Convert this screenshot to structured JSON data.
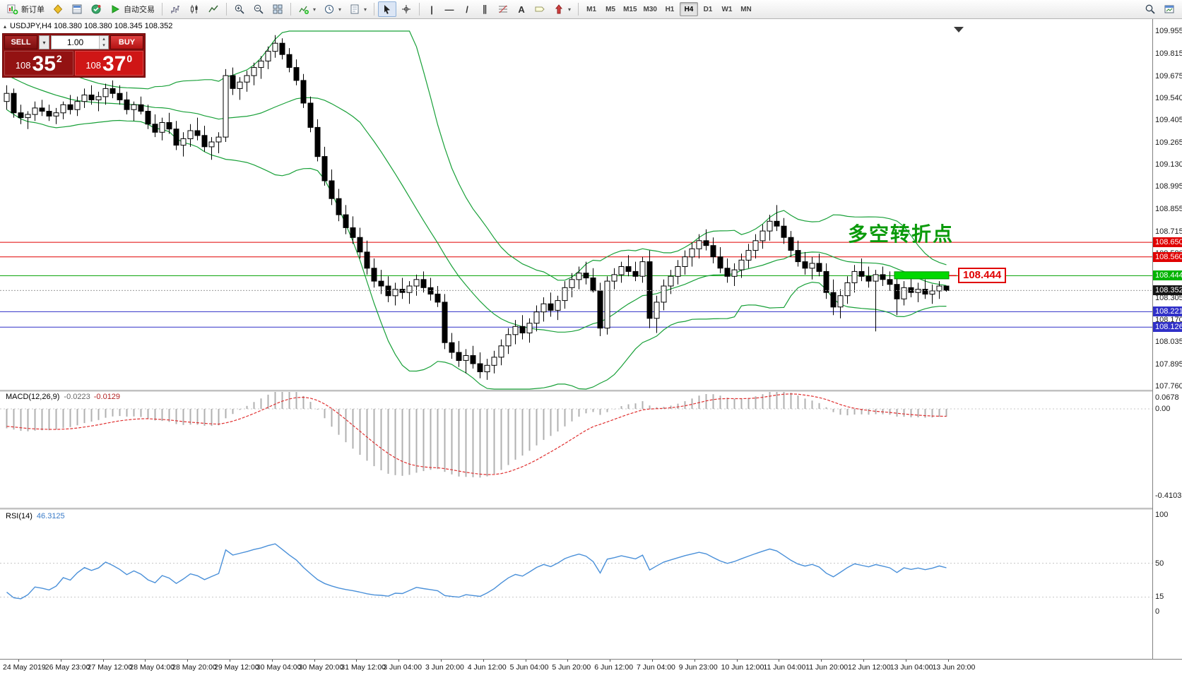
{
  "toolbar": {
    "new_order": "新订单",
    "autotrading": "自动交易",
    "timeframes": [
      "M1",
      "M5",
      "M15",
      "M30",
      "H1",
      "H4",
      "D1",
      "W1",
      "MN"
    ],
    "active_timeframe": "H4",
    "glyphs": {
      "dropdown": "▾",
      "spin_up": "▴",
      "spin_down": "▾",
      "vline": "|",
      "hline": "—",
      "trendline": "/",
      "channel": "∥",
      "crosshair": "+",
      "text_tool": "A",
      "symbol_marker": "▴"
    }
  },
  "chart": {
    "symbol_line": "USDJPY,H4 108.380 108.380 108.345 108.352",
    "annotation": "多空转折点",
    "callout": "108.444",
    "trade_panel": {
      "sell_label": "SELL",
      "buy_label": "BUY",
      "volume": "1.00",
      "sell_price": {
        "main": "108",
        "big": "35",
        "sup": "2"
      },
      "buy_price": {
        "main": "108",
        "big": "37",
        "sup": "0"
      }
    },
    "price_labels": [
      "109.955",
      "109.815",
      "109.675",
      "109.540",
      "109.405",
      "109.265",
      "109.130",
      "108.995",
      "108.855",
      "108.715",
      "108.580",
      "108.440",
      "108.305",
      "108.170",
      "108.035",
      "107.895",
      "107.760"
    ],
    "hlines": [
      {
        "label": "108.650",
        "line_color": "#e00000",
        "badge_color": "#e00000",
        "style": "solid"
      },
      {
        "label": "108.560",
        "line_color": "#e00000",
        "badge_color": "#e00000",
        "style": "solid"
      },
      {
        "label": "108.444",
        "line_color": "#00a000",
        "badge_color": "#00b400",
        "style": "solid"
      },
      {
        "label": "108.352",
        "line_color": "#a8a8a8",
        "badge_color": "#151515",
        "style": "dotted"
      },
      {
        "label": "108.221",
        "line_color": "#3030c8",
        "badge_color": "#3030c8",
        "style": "solid"
      },
      {
        "label": "108.126",
        "line_color": "#3030c8",
        "badge_color": "#3030c8",
        "style": "solid"
      }
    ],
    "highlight": {
      "price_top": 108.468,
      "price_bottom": 108.424,
      "start_index": 126,
      "end_index": 133,
      "color": "#00d800",
      "border": "#009000"
    }
  },
  "macd": {
    "name": "MACD(12,26,9)",
    "value1": "-0.0223",
    "value2": "-0.0129",
    "axis": [
      {
        "v": 0.0678,
        "t": "0.0678"
      },
      {
        "v": 0,
        "t": "0.00"
      },
      {
        "v": -0.4103,
        "t": "-0.4103"
      }
    ]
  },
  "rsi": {
    "name": "RSI(14)",
    "value": "46.3125",
    "axis": [
      {
        "v": 100,
        "t": "100"
      },
      {
        "v": 50,
        "t": "50"
      },
      {
        "v": 15,
        "t": "15"
      },
      {
        "v": 0,
        "t": "0"
      }
    ],
    "levels": [
      50,
      15
    ]
  },
  "time_labels": [
    "24 May 2019",
    "26 May 23:00",
    "27 May 12:00",
    "28 May 04:00",
    "28 May 20:00",
    "29 May 12:00",
    "30 May 04:00",
    "30 May 20:00",
    "31 May 12:00",
    "3 Jun 04:00",
    "3 Jun 20:00",
    "4 Jun 12:00",
    "5 Jun 04:00",
    "5 Jun 20:00",
    "6 Jun 12:00",
    "7 Jun 04:00",
    "9 Jun 23:00",
    "10 Jun 12:00",
    "11 Jun 04:00",
    "11 Jun 20:00",
    "12 Jun 12:00",
    "13 Jun 04:00",
    "13 Jun 20:00"
  ],
  "colors": {
    "bull": "#ffffff",
    "bear": "#000000",
    "wick": "#000000",
    "bb": "#18a038",
    "macd_hist": "#b0b0b0",
    "macd_signal": "#e03030",
    "rsi_line": "#4a90d9",
    "grid_dash": "#c8c8c8"
  },
  "chart_data": {
    "type": "candlestick",
    "symbol": "USDJPY",
    "timeframe": "H4",
    "price_axis_top": 109.955,
    "price_axis_bottom": 107.76,
    "macd_axis": [
      0.0678,
      0,
      -0.4103
    ],
    "rsi_axis": [
      100,
      50,
      15,
      0
    ],
    "candles": [
      [
        109.52,
        109.62,
        109.47,
        109.57
      ],
      [
        109.57,
        109.6,
        109.42,
        109.45
      ],
      [
        109.45,
        109.5,
        109.38,
        109.42
      ],
      [
        109.42,
        109.46,
        109.35,
        109.44
      ],
      [
        109.44,
        109.52,
        109.4,
        109.48
      ],
      [
        109.48,
        109.53,
        109.43,
        109.46
      ],
      [
        109.46,
        109.5,
        109.4,
        109.43
      ],
      [
        109.43,
        109.48,
        109.38,
        109.45
      ],
      [
        109.45,
        109.52,
        109.41,
        109.5
      ],
      [
        109.5,
        109.56,
        109.44,
        109.47
      ],
      [
        109.47,
        109.55,
        109.43,
        109.52
      ],
      [
        109.52,
        109.6,
        109.48,
        109.56
      ],
      [
        109.56,
        109.62,
        109.5,
        109.53
      ],
      [
        109.53,
        109.58,
        109.46,
        109.55
      ],
      [
        109.55,
        109.63,
        109.5,
        109.6
      ],
      [
        109.6,
        109.65,
        109.54,
        109.57
      ],
      [
        109.57,
        109.62,
        109.5,
        109.53
      ],
      [
        109.53,
        109.58,
        109.44,
        109.47
      ],
      [
        109.47,
        109.52,
        109.4,
        109.5
      ],
      [
        109.5,
        109.55,
        109.44,
        109.46
      ],
      [
        109.46,
        109.5,
        109.35,
        109.38
      ],
      [
        109.38,
        109.44,
        109.3,
        109.33
      ],
      [
        109.33,
        109.42,
        109.28,
        109.39
      ],
      [
        109.39,
        109.45,
        109.32,
        109.35
      ],
      [
        109.35,
        109.4,
        109.22,
        109.25
      ],
      [
        109.25,
        109.33,
        109.18,
        109.29
      ],
      [
        109.29,
        109.38,
        109.24,
        109.34
      ],
      [
        109.34,
        109.42,
        109.28,
        109.31
      ],
      [
        109.31,
        109.37,
        109.21,
        109.24
      ],
      [
        109.24,
        109.3,
        109.16,
        109.27
      ],
      [
        109.27,
        109.33,
        109.2,
        109.3
      ],
      [
        109.3,
        109.72,
        109.27,
        109.68
      ],
      [
        109.68,
        109.73,
        109.56,
        109.6
      ],
      [
        109.6,
        109.67,
        109.53,
        109.64
      ],
      [
        109.64,
        109.71,
        109.58,
        109.68
      ],
      [
        109.68,
        109.76,
        109.62,
        109.73
      ],
      [
        109.73,
        109.8,
        109.66,
        109.77
      ],
      [
        109.77,
        109.86,
        109.72,
        109.83
      ],
      [
        109.83,
        109.93,
        109.79,
        109.88
      ],
      [
        109.88,
        109.91,
        109.78,
        109.81
      ],
      [
        109.81,
        109.85,
        109.7,
        109.73
      ],
      [
        109.73,
        109.78,
        109.62,
        109.65
      ],
      [
        109.65,
        109.69,
        109.48,
        109.51
      ],
      [
        109.51,
        109.55,
        109.33,
        109.36
      ],
      [
        109.36,
        109.41,
        109.15,
        109.18
      ],
      [
        109.18,
        109.24,
        109.0,
        109.03
      ],
      [
        109.03,
        109.1,
        108.88,
        108.92
      ],
      [
        108.92,
        108.98,
        108.78,
        108.82
      ],
      [
        108.82,
        108.88,
        108.7,
        108.74
      ],
      [
        108.74,
        108.81,
        108.64,
        108.68
      ],
      [
        108.68,
        108.74,
        108.55,
        108.59
      ],
      [
        108.59,
        108.66,
        108.45,
        108.49
      ],
      [
        108.49,
        108.55,
        108.37,
        108.41
      ],
      [
        108.41,
        108.48,
        108.33,
        108.38
      ],
      [
        108.38,
        108.44,
        108.28,
        108.32
      ],
      [
        108.32,
        108.4,
        108.26,
        108.36
      ],
      [
        108.36,
        108.43,
        108.3,
        108.34
      ],
      [
        108.34,
        108.41,
        108.27,
        108.38
      ],
      [
        108.38,
        108.45,
        108.32,
        108.42
      ],
      [
        108.42,
        108.47,
        108.34,
        108.37
      ],
      [
        108.37,
        108.43,
        108.29,
        108.33
      ],
      [
        108.33,
        108.38,
        108.25,
        108.28
      ],
      [
        108.28,
        108.33,
        107.99,
        108.03
      ],
      [
        108.03,
        108.09,
        107.93,
        107.97
      ],
      [
        107.97,
        108.04,
        107.88,
        107.92
      ],
      [
        107.92,
        107.99,
        107.84,
        107.95
      ],
      [
        107.95,
        108.01,
        107.87,
        107.9
      ],
      [
        107.9,
        107.97,
        107.81,
        107.85
      ],
      [
        107.85,
        107.93,
        107.8,
        107.89
      ],
      [
        107.89,
        107.98,
        107.84,
        107.94
      ],
      [
        107.94,
        108.05,
        107.89,
        108.01
      ],
      [
        108.01,
        108.12,
        107.96,
        108.08
      ],
      [
        108.08,
        108.17,
        108.02,
        108.13
      ],
      [
        108.13,
        108.2,
        108.05,
        108.09
      ],
      [
        108.09,
        108.18,
        108.03,
        108.15
      ],
      [
        108.15,
        108.26,
        108.1,
        108.22
      ],
      [
        108.22,
        108.31,
        108.16,
        108.27
      ],
      [
        108.27,
        108.34,
        108.19,
        108.23
      ],
      [
        108.23,
        108.32,
        108.17,
        108.29
      ],
      [
        108.29,
        108.41,
        108.24,
        108.37
      ],
      [
        108.37,
        108.46,
        108.31,
        108.42
      ],
      [
        108.42,
        108.5,
        108.36,
        108.46
      ],
      [
        108.46,
        108.53,
        108.39,
        108.43
      ],
      [
        108.43,
        108.49,
        108.34,
        108.35
      ],
      [
        108.35,
        108.4,
        108.07,
        108.12
      ],
      [
        108.12,
        108.44,
        108.08,
        108.41
      ],
      [
        108.41,
        108.49,
        108.36,
        108.45
      ],
      [
        108.45,
        108.53,
        108.4,
        108.5
      ],
      [
        108.5,
        108.57,
        108.44,
        108.47
      ],
      [
        108.47,
        108.53,
        108.41,
        108.44
      ],
      [
        108.44,
        108.56,
        108.4,
        108.53
      ],
      [
        108.53,
        108.6,
        108.12,
        108.18
      ],
      [
        108.18,
        108.32,
        108.09,
        108.28
      ],
      [
        108.28,
        108.42,
        108.23,
        108.38
      ],
      [
        108.38,
        108.48,
        108.33,
        108.44
      ],
      [
        108.44,
        108.54,
        108.39,
        108.5
      ],
      [
        108.5,
        108.6,
        108.45,
        108.56
      ],
      [
        108.56,
        108.65,
        108.5,
        108.61
      ],
      [
        108.61,
        108.7,
        108.55,
        108.66
      ],
      [
        108.66,
        108.73,
        108.6,
        108.63
      ],
      [
        108.63,
        108.68,
        108.52,
        108.56
      ],
      [
        108.56,
        108.62,
        108.46,
        108.49
      ],
      [
        108.49,
        108.55,
        108.4,
        108.44
      ],
      [
        108.44,
        108.52,
        108.38,
        108.48
      ],
      [
        108.48,
        108.58,
        108.43,
        108.54
      ],
      [
        108.54,
        108.64,
        108.49,
        108.6
      ],
      [
        108.6,
        108.7,
        108.55,
        108.66
      ],
      [
        108.66,
        108.76,
        108.61,
        108.72
      ],
      [
        108.72,
        108.82,
        108.66,
        108.78
      ],
      [
        108.78,
        108.88,
        108.72,
        108.75
      ],
      [
        108.75,
        108.8,
        108.64,
        108.68
      ],
      [
        108.68,
        108.72,
        108.56,
        108.6
      ],
      [
        108.6,
        108.66,
        108.5,
        108.53
      ],
      [
        108.53,
        108.59,
        108.45,
        108.49
      ],
      [
        108.49,
        108.56,
        108.42,
        108.52
      ],
      [
        108.52,
        108.58,
        108.44,
        108.47
      ],
      [
        108.47,
        108.52,
        108.3,
        108.34
      ],
      [
        108.34,
        108.42,
        108.2,
        108.25
      ],
      [
        108.25,
        108.36,
        108.18,
        108.32
      ],
      [
        108.32,
        108.44,
        108.27,
        108.4
      ],
      [
        108.4,
        108.51,
        108.34,
        108.47
      ],
      [
        108.47,
        108.55,
        108.41,
        108.44
      ],
      [
        108.44,
        108.5,
        108.37,
        108.41
      ],
      [
        108.41,
        108.48,
        108.1,
        108.45
      ],
      [
        108.45,
        108.5,
        108.38,
        108.42
      ],
      [
        108.42,
        108.47,
        108.35,
        108.39
      ],
      [
        108.39,
        108.46,
        108.2,
        108.3
      ],
      [
        108.3,
        108.41,
        108.26,
        108.37
      ],
      [
        108.37,
        108.43,
        108.31,
        108.34
      ],
      [
        108.34,
        108.4,
        108.28,
        108.36
      ],
      [
        108.36,
        108.42,
        108.3,
        108.33
      ],
      [
        108.33,
        108.39,
        108.27,
        108.35
      ],
      [
        108.35,
        108.41,
        108.3,
        108.38
      ],
      [
        108.38,
        108.38,
        108.345,
        108.352
      ]
    ]
  }
}
